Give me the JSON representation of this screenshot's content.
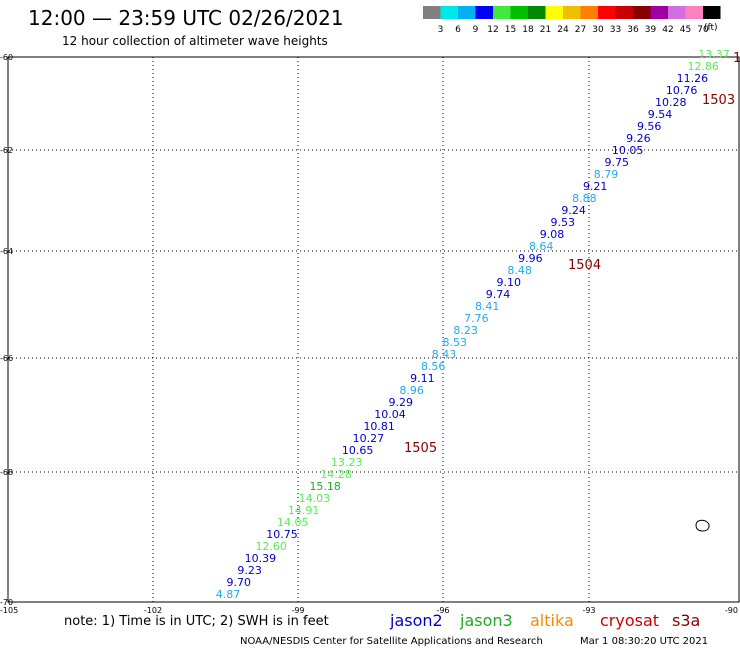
{
  "header": {
    "title": "12:00 — 23:59 UTC 02/26/2021",
    "subtitle": "12 hour collection of altimeter wave heights"
  },
  "colorbar": {
    "unit": "(ft)",
    "bins": [
      {
        "label": "3",
        "color": "#808080"
      },
      {
        "label": "6",
        "color": "#00e8e8"
      },
      {
        "label": "9",
        "color": "#00b0f0"
      },
      {
        "label": "12",
        "color": "#0000ff"
      },
      {
        "label": "15",
        "color": "#40e840"
      },
      {
        "label": "18",
        "color": "#00c000"
      },
      {
        "label": "21",
        "color": "#008800"
      },
      {
        "label": "24",
        "color": "#ffff00"
      },
      {
        "label": "27",
        "color": "#f0c000"
      },
      {
        "label": "30",
        "color": "#ff8000"
      },
      {
        "label": "33",
        "color": "#ff0000"
      },
      {
        "label": "36",
        "color": "#c80000"
      },
      {
        "label": "39",
        "color": "#880000"
      },
      {
        "label": "42",
        "color": "#a000a0"
      },
      {
        "label": "45",
        "color": "#d070e0"
      },
      {
        "label": "70",
        "color": "#ff80c0"
      },
      {
        "label": "",
        "color": "#000000"
      }
    ]
  },
  "axes": {
    "lon_labels": [
      "-105",
      "-102",
      "-99",
      "-96",
      "-93",
      "-90"
    ],
    "lat_labels": [
      "-60",
      "-62",
      "-64",
      "-66",
      "-68",
      "-70"
    ]
  },
  "colors": {
    "jason2": "#0000cc",
    "jason3": "#22aa22",
    "altika": "#ff8800",
    "cryosat": "#cc0000",
    "s3a": "#880000",
    "light_green": "#55ee55",
    "cyan": "#22aaee",
    "time_label": "#880000"
  },
  "track": [
    {
      "v": "13.37",
      "c": "light_green"
    },
    {
      "v": "12.86",
      "c": "light_green"
    },
    {
      "v": "11.26",
      "c": "jason2"
    },
    {
      "v": "10.76",
      "c": "jason2"
    },
    {
      "v": "10.28",
      "c": "jason2"
    },
    {
      "v": "9.54",
      "c": "jason2"
    },
    {
      "v": "9.56",
      "c": "jason2"
    },
    {
      "v": "9.26",
      "c": "jason2"
    },
    {
      "v": "10.05",
      "c": "jason2"
    },
    {
      "v": "9.75",
      "c": "jason2"
    },
    {
      "v": "8.79",
      "c": "cyan"
    },
    {
      "v": "9.21",
      "c": "jason2"
    },
    {
      "v": "8.88",
      "c": "cyan"
    },
    {
      "v": "9.24",
      "c": "jason2"
    },
    {
      "v": "9.53",
      "c": "jason2"
    },
    {
      "v": "9.08",
      "c": "jason2"
    },
    {
      "v": "8.64",
      "c": "cyan"
    },
    {
      "v": "9.96",
      "c": "jason2"
    },
    {
      "v": "8.48",
      "c": "cyan"
    },
    {
      "v": "9.10",
      "c": "jason2"
    },
    {
      "v": "9.74",
      "c": "jason2"
    },
    {
      "v": "8.41",
      "c": "cyan"
    },
    {
      "v": "7.76",
      "c": "cyan"
    },
    {
      "v": "8.23",
      "c": "cyan"
    },
    {
      "v": "8.53",
      "c": "cyan"
    },
    {
      "v": "8.43",
      "c": "cyan"
    },
    {
      "v": "8.56",
      "c": "cyan"
    },
    {
      "v": "9.11",
      "c": "jason2"
    },
    {
      "v": "8.96",
      "c": "cyan"
    },
    {
      "v": "9.29",
      "c": "jason2"
    },
    {
      "v": "10.04",
      "c": "jason2"
    },
    {
      "v": "10.81",
      "c": "jason2"
    },
    {
      "v": "10.27",
      "c": "jason2"
    },
    {
      "v": "10.65",
      "c": "jason2"
    },
    {
      "v": "13.23",
      "c": "light_green"
    },
    {
      "v": "14.28",
      "c": "light_green"
    },
    {
      "v": "15.18",
      "c": "jason3"
    },
    {
      "v": "14.03",
      "c": "light_green"
    },
    {
      "v": "14.91",
      "c": "light_green"
    },
    {
      "v": "14.05",
      "c": "light_green"
    },
    {
      "v": "10.75",
      "c": "jason2"
    },
    {
      "v": "12.60",
      "c": "light_green"
    },
    {
      "v": "10.39",
      "c": "jason2"
    },
    {
      "v": "9.23",
      "c": "jason2"
    },
    {
      "v": "9.70",
      "c": "jason2"
    },
    {
      "v": "4.87",
      "c": "cyan"
    }
  ],
  "time_labels": [
    "1503",
    "1504",
    "1505",
    "1"
  ],
  "footer": {
    "note": "note: 1) Time is in UTC; 2) SWH is in feet",
    "satellites": [
      {
        "name": "jason2",
        "color": "#0000cc"
      },
      {
        "name": "jason3",
        "color": "#22aa22"
      },
      {
        "name": "altika",
        "color": "#ff8800"
      },
      {
        "name": "cryosat",
        "color": "#cc0000"
      },
      {
        "name": "s3a",
        "color": "#880000"
      }
    ],
    "credit": "NOAA/NESDIS Center for Satellite Applications and Research",
    "timestamp": "Mar  1 08:30:20 UTC 2021"
  }
}
